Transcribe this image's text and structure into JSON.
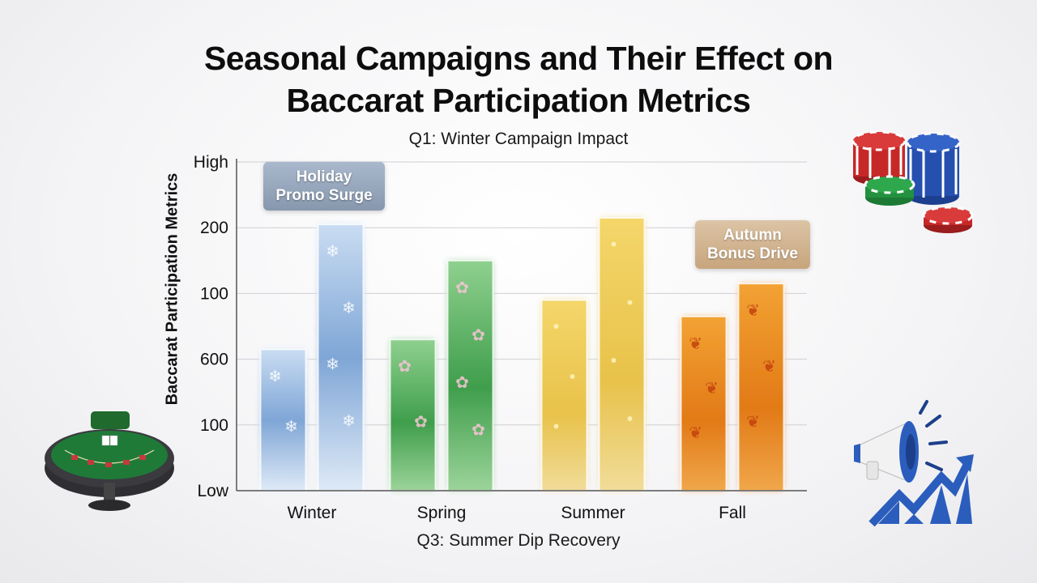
{
  "title": {
    "line1": "Seasonal Campaigns and Their Effect on",
    "line2": "Baccarat Participation Metrics"
  },
  "subtitle": "Q1: Winter Campaign Impact",
  "footnote": "Q3: Summer Dip Recovery",
  "callouts": {
    "holiday_line1": "Holiday",
    "holiday_line2": "Promo Surge",
    "autumn_line1": "Autumn",
    "autumn_line2": "Bonus Drive"
  },
  "colors": {
    "winter": "#7fa6d6",
    "spring": "#5fb867",
    "summer": "#ecc545",
    "fall": "#e98a1c",
    "grid": "#cfcfd4",
    "axis": "#555555"
  },
  "icons": [
    "baccarat-table-icon",
    "poker-chips-icon",
    "megaphone-icon",
    "trend-arrow-icon",
    "snowflake-icon",
    "cherry-blossom-icon",
    "maple-leaf-icon"
  ],
  "chart_data": {
    "type": "bar",
    "title": "Seasonal Campaigns and Their Effect on Baccarat Participation Metrics",
    "subtitle": "Q1: Winter Campaign Impact",
    "xlabel": "",
    "ylabel": "Baccarat Participation Metrics",
    "y_tick_labels": [
      "Low",
      "100",
      "600",
      "100",
      "200",
      "High"
    ],
    "y_tick_levels": [
      0,
      1,
      2,
      3,
      4,
      5
    ],
    "ylim": [
      0,
      5
    ],
    "grid": true,
    "legend": "none",
    "categories": [
      "Winter",
      "Spring",
      "Summer",
      "Fall"
    ],
    "series": [
      {
        "values": [
          2.15,
          2.3,
          2.9,
          2.65
        ]
      },
      {
        "values": [
          4.05,
          3.5,
          4.15,
          3.15
        ]
      }
    ],
    "annotations": [
      "Holiday Promo Surge",
      "Autumn Bonus Drive",
      "Q3: Summer Dip Recovery"
    ]
  }
}
